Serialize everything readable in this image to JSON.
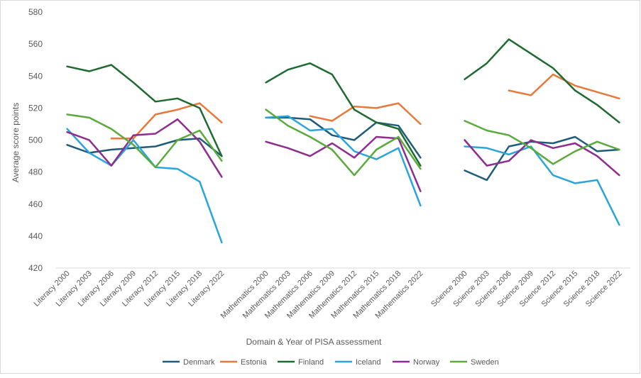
{
  "chart_data": {
    "type": "line",
    "title": "",
    "xlabel": "Domain & Year of PISA assessment",
    "ylabel": "Average score points",
    "ylim": [
      420,
      580
    ],
    "yticks": [
      420,
      440,
      460,
      480,
      500,
      520,
      540,
      560,
      580
    ],
    "grid": false,
    "legend_position": "bottom",
    "categories": [
      "Literacy 2000",
      "Literacy 2003",
      "Literacy 2006",
      "Literacy 2009",
      "Literacy 2012",
      "Literacy 2015",
      "Literacy 2018",
      "Literacy 2022",
      "",
      "Mathematics 2000",
      "Mathematics 2003",
      "Mathematics 2006",
      "Mathematics 2009",
      "Mathematics 2012",
      "Mathematics 2015",
      "Mathematics 2018",
      "Mathematics 2022",
      "",
      "Science 2000",
      "Science 2003",
      "Science 2006",
      "Science 2009",
      "Science 2012",
      "Science 2015",
      "Science 2018",
      "Science 2022"
    ],
    "series": [
      {
        "name": "Denmark",
        "color": "#1f5c7a",
        "values": [
          497,
          492,
          494,
          495,
          496,
          500,
          501,
          490,
          null,
          514,
          514,
          513,
          503,
          500,
          511,
          509,
          489,
          null,
          481,
          475,
          496,
          499,
          498,
          502,
          493,
          494
        ]
      },
      {
        "name": "Estonia",
        "color": "#e8793a",
        "values": [
          null,
          null,
          501,
          501,
          516,
          519,
          523,
          511,
          null,
          null,
          null,
          515,
          512,
          521,
          520,
          523,
          510,
          null,
          null,
          null,
          531,
          528,
          541,
          534,
          530,
          526
        ]
      },
      {
        "name": "Finland",
        "color": "#1e6b30",
        "values": [
          546,
          543,
          547,
          536,
          524,
          526,
          520,
          490,
          null,
          536,
          544,
          548,
          541,
          519,
          511,
          507,
          484,
          null,
          538,
          548,
          563,
          554,
          545,
          531,
          522,
          511
        ]
      },
      {
        "name": "Iceland",
        "color": "#2aa5dc",
        "values": [
          507,
          492,
          484,
          500,
          483,
          482,
          474,
          436,
          null,
          514,
          515,
          506,
          507,
          493,
          488,
          495,
          459,
          null,
          496,
          495,
          491,
          496,
          478,
          473,
          475,
          447
        ]
      },
      {
        "name": "Norway",
        "color": "#8e2c8f",
        "values": [
          505,
          500,
          484,
          503,
          504,
          513,
          499,
          477,
          null,
          499,
          495,
          490,
          498,
          489,
          502,
          501,
          468,
          null,
          500,
          484,
          487,
          500,
          495,
          498,
          490,
          478
        ]
      },
      {
        "name": "Sweden",
        "color": "#5aaa3c",
        "values": [
          516,
          514,
          507,
          497,
          483,
          500,
          506,
          487,
          null,
          519,
          509,
          502,
          494,
          478,
          494,
          502,
          482,
          null,
          512,
          506,
          503,
          495,
          485,
          493,
          499,
          494
        ]
      }
    ]
  }
}
